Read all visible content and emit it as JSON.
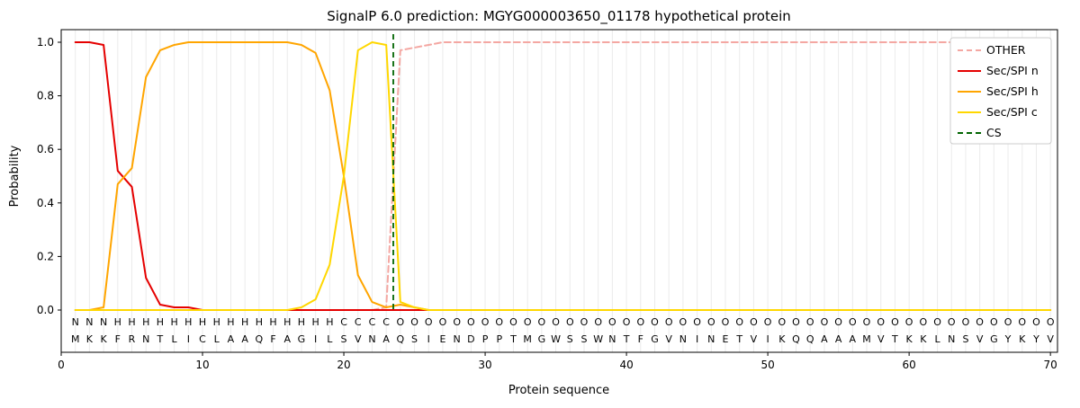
{
  "title": "SignalP 6.0 prediction: MGYG000003650_01178 hypothetical protein",
  "axes": {
    "ylabel": "Probability",
    "xlabel": "Protein sequence",
    "yticks": [
      0.0,
      0.2,
      0.4,
      0.6,
      0.8,
      1.0
    ],
    "xticks": [
      0,
      10,
      20,
      30,
      40,
      50,
      60,
      70
    ]
  },
  "legend": {
    "items": [
      "OTHER",
      "Sec/SPI n",
      "Sec/SPI h",
      "Sec/SPI c",
      "CS"
    ]
  },
  "chart_data": {
    "type": "line",
    "x_range": [
      1,
      70
    ],
    "ylim": [
      -0.16,
      1.05
    ],
    "xlim": [
      0,
      70.5
    ],
    "grid": "vertical-per-residue",
    "legend_position": "upper-right",
    "series": [
      {
        "name": "OTHER",
        "color": "#f4a7a2",
        "dash": true,
        "values": [
          0,
          0,
          0,
          0,
          0,
          0,
          0,
          0,
          0,
          0,
          0,
          0,
          0,
          0,
          0,
          0,
          0,
          0,
          0,
          0,
          0,
          0,
          0.01,
          0.97,
          0.98,
          0.99,
          1,
          1,
          1,
          1,
          1,
          1,
          1,
          1,
          1,
          1,
          1,
          1,
          1,
          1,
          1,
          1,
          1,
          1,
          1,
          1,
          1,
          1,
          1,
          1,
          1,
          1,
          1,
          1,
          1,
          1,
          1,
          1,
          1,
          1,
          1,
          1,
          1,
          1,
          1,
          1,
          1,
          1,
          1,
          1
        ]
      },
      {
        "name": "Sec/SPI n",
        "color": "#e50000",
        "dash": false,
        "values": [
          1,
          1,
          0.99,
          0.52,
          0.46,
          0.12,
          0.02,
          0.01,
          0.01,
          0,
          0,
          0,
          0,
          0,
          0,
          0,
          0,
          0,
          0,
          0,
          0,
          0,
          0,
          0,
          0,
          0,
          0,
          0,
          0,
          0,
          0,
          0,
          0,
          0,
          0,
          0,
          0,
          0,
          0,
          0,
          0,
          0,
          0,
          0,
          0,
          0,
          0,
          0,
          0,
          0,
          0,
          0,
          0,
          0,
          0,
          0,
          0,
          0,
          0,
          0,
          0,
          0,
          0,
          0,
          0,
          0,
          0,
          0,
          0,
          0
        ]
      },
      {
        "name": "Sec/SPI h",
        "color": "#ffa500",
        "dash": false,
        "values": [
          0,
          0,
          0.01,
          0.47,
          0.53,
          0.87,
          0.97,
          0.99,
          1,
          1,
          1,
          1,
          1,
          1,
          1,
          1,
          0.99,
          0.96,
          0.82,
          0.5,
          0.13,
          0.03,
          0.01,
          0.02,
          0.01,
          0,
          0,
          0,
          0,
          0,
          0,
          0,
          0,
          0,
          0,
          0,
          0,
          0,
          0,
          0,
          0,
          0,
          0,
          0,
          0,
          0,
          0,
          0,
          0,
          0,
          0,
          0,
          0,
          0,
          0,
          0,
          0,
          0,
          0,
          0,
          0,
          0,
          0,
          0,
          0,
          0,
          0,
          0,
          0,
          0
        ]
      },
      {
        "name": "Sec/SPI c",
        "color": "#ffd700",
        "dash": false,
        "values": [
          0,
          0,
          0,
          0,
          0,
          0,
          0,
          0,
          0,
          0,
          0,
          0,
          0,
          0,
          0,
          0,
          0.01,
          0.04,
          0.17,
          0.5,
          0.97,
          1,
          0.99,
          0.03,
          0.01,
          0,
          0,
          0,
          0,
          0,
          0,
          0,
          0,
          0,
          0,
          0,
          0,
          0,
          0,
          0,
          0,
          0,
          0,
          0,
          0,
          0,
          0,
          0,
          0,
          0,
          0,
          0,
          0,
          0,
          0,
          0,
          0,
          0,
          0,
          0,
          0,
          0,
          0,
          0,
          0,
          0,
          0,
          0,
          0,
          0
        ]
      }
    ],
    "cs_line": {
      "name": "CS",
      "x": 23.5,
      "color": "#006400",
      "dash": true
    },
    "sequence": "MKKFRNTLICLAAQFAGILSVNAQSIENDPPTMGWSSWNTFGVNINETVIKQQAAAMVTKKLNSVGYKYV",
    "region_labels": "NNNHHHHHHHHHHHHHHHHCCCCOOOOOOOOOOOOOOOOOOOOOOOOOOOOOOOOOOOOOOOOOOOOOOO",
    "region_colors": {
      "N": "#e50000",
      "H": "#ffa500",
      "C": "#ffd700",
      "O": "#8c8c8c"
    }
  }
}
